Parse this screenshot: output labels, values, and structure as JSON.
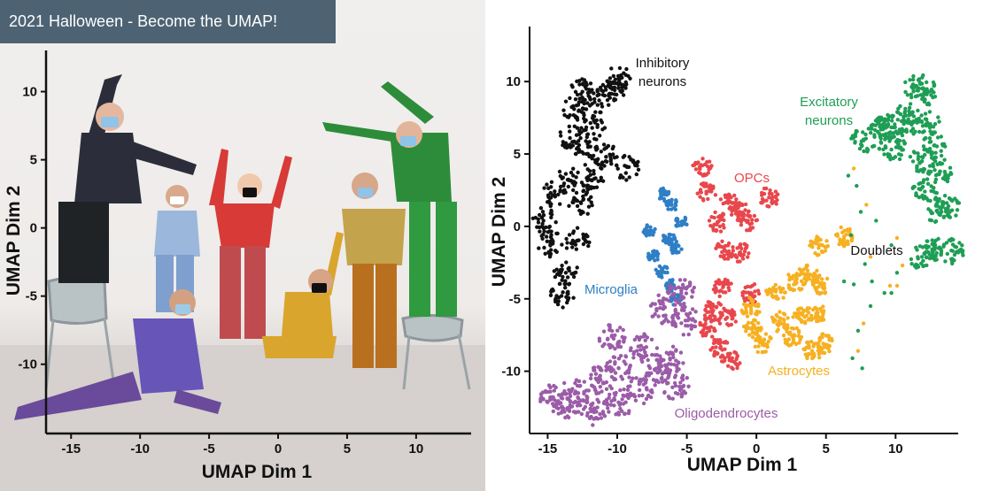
{
  "banner": {
    "title": "2021 Halloween - Become the UMAP!"
  },
  "photo": {
    "xlabel": "UMAP Dim 1",
    "ylabel": "UMAP Dim 2",
    "x_ticks": [
      "-15",
      "-10",
      "-5",
      "0",
      "5",
      "10"
    ],
    "y_ticks": [
      "10",
      "5",
      "0",
      "-5",
      "-10"
    ]
  },
  "chart_data": {
    "type": "scatter",
    "xlabel": "UMAP Dim 1",
    "ylabel": "UMAP Dim 2",
    "xlim": [
      -16.3,
      14.5
    ],
    "ylim": [
      -14.3,
      13.8
    ],
    "x_ticks": [
      -15,
      -10,
      -5,
      0,
      5,
      10
    ],
    "y_ticks": [
      10,
      5,
      0,
      -5,
      -10
    ],
    "grid": false,
    "legend": "none",
    "series": [
      {
        "name": "Inhibitory neurons",
        "color": "#111111",
        "label_lines": [
          "Inhibitory",
          "neurons"
        ],
        "points": [
          [
            -15.3,
            0.4
          ],
          [
            -14.5,
            2.2
          ],
          [
            -13.4,
            6.1
          ],
          [
            -13.1,
            8.1
          ],
          [
            -13.5,
            3.2
          ],
          [
            -12.9,
            -1.0
          ],
          [
            -12.2,
            5.0
          ],
          [
            -11.8,
            6.8
          ],
          [
            -11.3,
            8.7
          ],
          [
            -10.2,
            9.6
          ],
          [
            -9.9,
            10.2
          ],
          [
            -10.8,
            4.8
          ],
          [
            -9.3,
            4.1
          ],
          [
            -13.7,
            -3.2
          ],
          [
            -14.0,
            -4.8
          ],
          [
            -12.6,
            1.6
          ],
          [
            -11.9,
            3.2
          ],
          [
            -14.8,
            -1.2
          ],
          [
            -12.5,
            9.3
          ]
        ]
      },
      {
        "name": "Excitatory neurons",
        "color": "#1e9e55",
        "label_lines": [
          "Excitatory",
          "neurons"
        ],
        "points": [
          [
            7.7,
            6.0
          ],
          [
            9.1,
            6.7
          ],
          [
            9.7,
            5.3
          ],
          [
            10.6,
            6.6
          ],
          [
            11.0,
            7.8
          ],
          [
            12.3,
            7.1
          ],
          [
            12.8,
            5.6
          ],
          [
            12.1,
            2.4
          ],
          [
            13.0,
            1.1
          ],
          [
            13.8,
            1.4
          ],
          [
            14.1,
            -1.7
          ],
          [
            12.7,
            -1.6
          ],
          [
            11.9,
            -2.1
          ],
          [
            12.4,
            9.3
          ],
          [
            11.5,
            9.7
          ],
          [
            13.2,
            3.8
          ],
          [
            9.3,
            6.9
          ],
          [
            11.9,
            4.5
          ]
        ]
      },
      {
        "name": "OPCs",
        "color": "#e8474c",
        "label_lines": [
          "OPCs"
        ],
        "points": [
          [
            -3.9,
            4.2
          ],
          [
            -3.6,
            2.4
          ],
          [
            -2.8,
            0.3
          ],
          [
            -1.9,
            1.7
          ],
          [
            -1.2,
            1.0
          ],
          [
            -0.6,
            0.4
          ],
          [
            0.9,
            2.0
          ],
          [
            -2.3,
            -1.6
          ],
          [
            -1.2,
            -1.8
          ],
          [
            -2.4,
            -4.2
          ],
          [
            -3.1,
            -5.8
          ],
          [
            -2.6,
            -8.4
          ],
          [
            -1.8,
            -9.3
          ],
          [
            -0.4,
            -4.6
          ],
          [
            -3.5,
            -7.0
          ],
          [
            -2.1,
            -6.3
          ]
        ]
      },
      {
        "name": "Astrocytes",
        "color": "#f6b021",
        "label_lines": [
          "Astrocytes"
        ],
        "points": [
          [
            4.5,
            -1.3
          ],
          [
            3.7,
            -3.3
          ],
          [
            2.8,
            -3.8
          ],
          [
            1.4,
            -4.5
          ],
          [
            -0.4,
            -5.6
          ],
          [
            -0.2,
            -7.0
          ],
          [
            0.5,
            -8.1
          ],
          [
            1.7,
            -6.6
          ],
          [
            2.6,
            -7.6
          ],
          [
            3.3,
            -6.1
          ],
          [
            4.3,
            -6.0
          ],
          [
            4.8,
            -8.1
          ],
          [
            4.0,
            -8.6
          ],
          [
            6.3,
            -0.7
          ],
          [
            4.6,
            -4.0
          ]
        ]
      },
      {
        "name": "Microglia",
        "color": "#2e7fc6",
        "label_lines": [
          "Microglia"
        ],
        "points": [
          [
            -6.1,
            1.5
          ],
          [
            -6.3,
            -0.8
          ],
          [
            -5.8,
            -1.5
          ],
          [
            -6.8,
            -3.1
          ],
          [
            -6.2,
            -4.1
          ],
          [
            -5.8,
            -5.0
          ],
          [
            -7.7,
            -0.3
          ],
          [
            -5.4,
            0.3
          ],
          [
            -7.4,
            -2.1
          ],
          [
            -6.6,
            2.2
          ]
        ]
      },
      {
        "name": "Oligodendrocytes",
        "color": "#9b5ca8",
        "label_lines": [
          "Oligodendrocytes"
        ],
        "points": [
          [
            -14.6,
            -11.8
          ],
          [
            -13.4,
            -12.5
          ],
          [
            -11.5,
            -12.8
          ],
          [
            -9.8,
            -12.2
          ],
          [
            -8.4,
            -11.3
          ],
          [
            -7.1,
            -10.1
          ],
          [
            -6.2,
            -9.2
          ],
          [
            -5.1,
            -6.5
          ],
          [
            -5.4,
            -4.6
          ],
          [
            -6.7,
            -5.7
          ],
          [
            -8.1,
            -8.4
          ],
          [
            -9.9,
            -9.8
          ],
          [
            -11.2,
            -10.6
          ],
          [
            -13.0,
            -11.4
          ],
          [
            -10.4,
            -7.6
          ],
          [
            -5.8,
            -11.0
          ]
        ]
      },
      {
        "name": "Doublets",
        "color": "#1e9e55",
        "label_lines": [
          "Doublets"
        ],
        "points": [
          [
            6.6,
            3.5
          ],
          [
            7.2,
            2.8
          ],
          [
            7.5,
            1.0
          ],
          [
            6.8,
            -0.6
          ],
          [
            7.8,
            -2.6
          ],
          [
            8.3,
            -3.8
          ],
          [
            9.2,
            -4.6
          ],
          [
            8.2,
            -5.5
          ],
          [
            7.3,
            -7.2
          ],
          [
            7.6,
            -9.8
          ],
          [
            6.9,
            -9.1
          ],
          [
            8.6,
            0.4
          ],
          [
            9.7,
            -1.3
          ],
          [
            7.0,
            -4.0
          ],
          [
            10.1,
            -3.2
          ],
          [
            6.3,
            -3.8
          ],
          [
            9.7,
            -4.6
          ]
        ]
      }
    ]
  }
}
